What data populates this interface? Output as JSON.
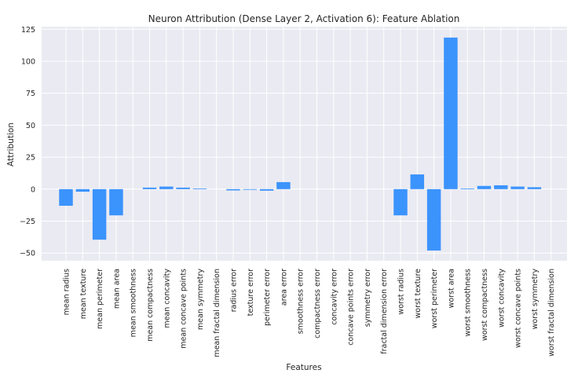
{
  "chart_data": {
    "type": "bar",
    "title": "Neuron Attribution (Dense Layer 2, Activation 6): Feature Ablation",
    "xlabel": "Features",
    "ylabel": "Attribution",
    "ylim": [
      -56,
      127
    ],
    "yticks": [
      -50,
      -25,
      0,
      25,
      50,
      75,
      100,
      125
    ],
    "grid": true,
    "bar_color": "#3b93fc",
    "background_color": "#eaeaf2",
    "grid_color": "#ffffff",
    "categories": [
      "mean radius",
      "mean texture",
      "mean perimeter",
      "mean area",
      "mean smoothness",
      "mean compactness",
      "mean concavity",
      "mean concave points",
      "mean symmetry",
      "mean fractal dimension",
      "radius error",
      "texture error",
      "perimeter error",
      "area error",
      "smoothness error",
      "compactness error",
      "concavity error",
      "concave points error",
      "symmetry error",
      "fractal dimension error",
      "worst radius",
      "worst texture",
      "worst perimeter",
      "worst area",
      "worst smoothness",
      "worst compactness",
      "worst concavity",
      "worst concave points",
      "worst symmetry",
      "worst fractal dimension"
    ],
    "values": [
      -13.0,
      -2.0,
      -39.5,
      -20.5,
      0.0,
      1.2,
      2.0,
      1.2,
      0.5,
      0.0,
      -1.0,
      -0.5,
      -1.2,
      5.5,
      0.0,
      0.0,
      0.0,
      0.0,
      0.0,
      0.0,
      -20.5,
      11.5,
      -48.0,
      118.5,
      0.5,
      2.5,
      3.0,
      2.0,
      1.5,
      0.0
    ]
  }
}
